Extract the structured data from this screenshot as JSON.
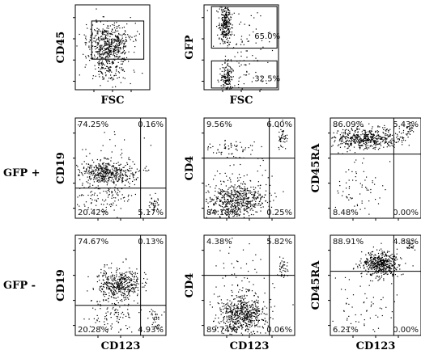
{
  "figure": {
    "row_labels": [
      "GFP +",
      "GFP -"
    ]
  },
  "chart_data": [
    {
      "type": "scatter",
      "id": "cd45-fsc",
      "xlabel": "FSC",
      "ylabel": "CD45",
      "gate": "rectangle",
      "percentages": {}
    },
    {
      "type": "scatter",
      "id": "gfp-fsc",
      "xlabel": "FSC",
      "ylabel": "GFP",
      "gates": [
        "GFP high",
        "GFP low"
      ],
      "percentages": {
        "upper": "65.0%",
        "lower": "32.5%"
      }
    },
    {
      "type": "scatter",
      "id": "gfp-pos-cd19",
      "row": "GFP +",
      "xlabel": "",
      "ylabel": "CD19",
      "quadrants": {
        "ul": "74.25%",
        "ur": "0.16%",
        "ll": "20.42%",
        "lr": "5.17%"
      }
    },
    {
      "type": "scatter",
      "id": "gfp-pos-cd4",
      "row": "GFP +",
      "xlabel": "",
      "ylabel": "CD4",
      "quadrants": {
        "ul": "9.56%",
        "ur": "6.00%",
        "ll": "84.18%",
        "lr": "0.25%"
      }
    },
    {
      "type": "scatter",
      "id": "gfp-pos-cd45ra",
      "row": "GFP +",
      "xlabel": "",
      "ylabel": "CD45RA",
      "quadrants": {
        "ul": "86.09%",
        "ur": "5.43%",
        "ll": "8.48%",
        "lr": "0.00%"
      }
    },
    {
      "type": "scatter",
      "id": "gfp-neg-cd19",
      "row": "GFP -",
      "xlabel": "CD123",
      "ylabel": "CD19",
      "quadrants": {
        "ul": "74.67%",
        "ur": "0.13%",
        "ll": "20.28%",
        "lr": "4.93%"
      }
    },
    {
      "type": "scatter",
      "id": "gfp-neg-cd4",
      "row": "GFP -",
      "xlabel": "CD123",
      "ylabel": "CD4",
      "quadrants": {
        "ul": "4.38%",
        "ur": "5.82%",
        "ll": "89.74%",
        "lr": "0.06%"
      }
    },
    {
      "type": "scatter",
      "id": "gfp-neg-cd45ra",
      "row": "GFP -",
      "xlabel": "CD123",
      "ylabel": "CD45RA",
      "quadrants": {
        "ul": "88.91%",
        "ur": "4.88%",
        "ll": "6.21%",
        "lr": "0.00%"
      }
    }
  ]
}
